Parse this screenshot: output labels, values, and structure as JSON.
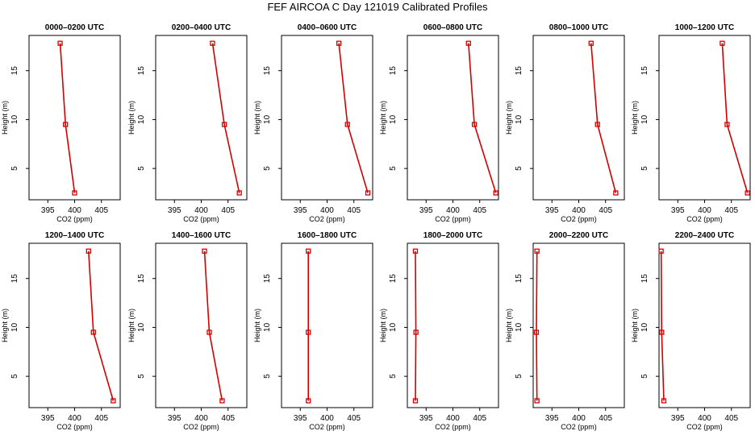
{
  "title": "FEF AIRCOA C  Day 121019  Calibrated Profiles",
  "chart_data": {
    "type": "line",
    "xlabel": "CO2 (ppm)",
    "ylabel": "Height (m)",
    "xlim": [
      391.5,
      408.5
    ],
    "ylim": [
      1.8,
      18.6
    ],
    "xticks": [
      395,
      400,
      405
    ],
    "yticks": [
      5,
      10,
      15
    ],
    "color": "#d40000",
    "panels": [
      {
        "title": "0000–0200 UTC",
        "points": [
          {
            "co2": 397.3,
            "h": 17.8
          },
          {
            "co2": 398.3,
            "h": 9.5
          },
          {
            "co2": 400.0,
            "h": 2.5
          }
        ]
      },
      {
        "title": "0200–0400 UTC",
        "points": [
          {
            "co2": 402.1,
            "h": 17.8
          },
          {
            "co2": 404.3,
            "h": 9.5
          },
          {
            "co2": 407.1,
            "h": 2.5
          }
        ]
      },
      {
        "title": "0400–0600 UTC",
        "points": [
          {
            "co2": 402.2,
            "h": 17.8
          },
          {
            "co2": 403.8,
            "h": 9.5
          },
          {
            "co2": 407.6,
            "h": 2.5
          }
        ]
      },
      {
        "title": "0600–0800 UTC",
        "points": [
          {
            "co2": 402.9,
            "h": 17.8
          },
          {
            "co2": 404.0,
            "h": 9.5
          },
          {
            "co2": 408.0,
            "h": 2.5
          }
        ]
      },
      {
        "title": "0800–1000 UTC",
        "points": [
          {
            "co2": 402.3,
            "h": 17.8
          },
          {
            "co2": 403.5,
            "h": 9.5
          },
          {
            "co2": 406.9,
            "h": 2.5
          }
        ]
      },
      {
        "title": "1000–1200 UTC",
        "points": [
          {
            "co2": 403.3,
            "h": 17.8
          },
          {
            "co2": 404.2,
            "h": 9.5
          },
          {
            "co2": 408.0,
            "h": 2.5
          }
        ]
      },
      {
        "title": "1200–1400 UTC",
        "points": [
          {
            "co2": 402.6,
            "h": 17.8
          },
          {
            "co2": 403.5,
            "h": 9.5
          },
          {
            "co2": 407.2,
            "h": 2.5
          }
        ]
      },
      {
        "title": "1400–1600 UTC",
        "points": [
          {
            "co2": 400.6,
            "h": 17.8
          },
          {
            "co2": 401.5,
            "h": 9.5
          },
          {
            "co2": 403.9,
            "h": 2.5
          }
        ]
      },
      {
        "title": "1600–1800 UTC",
        "points": [
          {
            "co2": 396.5,
            "h": 17.8
          },
          {
            "co2": 396.5,
            "h": 9.5
          },
          {
            "co2": 396.5,
            "h": 2.5
          }
        ]
      },
      {
        "title": "1800–2000 UTC",
        "points": [
          {
            "co2": 393.0,
            "h": 17.8
          },
          {
            "co2": 393.1,
            "h": 9.5
          },
          {
            "co2": 393.0,
            "h": 2.5
          }
        ]
      },
      {
        "title": "2000–2200 UTC",
        "points": [
          {
            "co2": 392.2,
            "h": 17.8
          },
          {
            "co2": 392.1,
            "h": 9.5
          },
          {
            "co2": 392.2,
            "h": 2.5
          }
        ]
      },
      {
        "title": "2200–2400 UTC",
        "points": [
          {
            "co2": 391.9,
            "h": 17.8
          },
          {
            "co2": 392.0,
            "h": 9.5
          },
          {
            "co2": 392.4,
            "h": 2.5
          }
        ]
      }
    ]
  }
}
